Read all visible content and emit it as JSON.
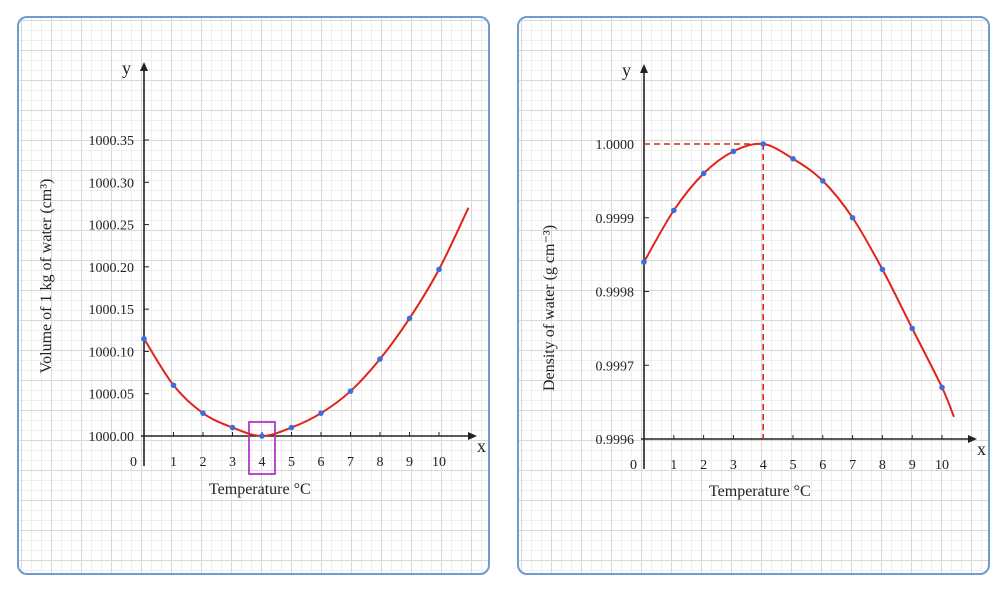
{
  "chart_data": [
    {
      "type": "line",
      "x": [
        0,
        1,
        2,
        3,
        4,
        5,
        6,
        7,
        8,
        9,
        10
      ],
      "series": [
        {
          "values": [
            1000.115,
            1000.06,
            1000.027,
            1000.01,
            1000.0,
            1000.01,
            1000.027,
            1000.053,
            1000.091,
            1000.139,
            1000.197
          ]
        }
      ],
      "curve_end": {
        "x": 11,
        "y": 1000.27
      },
      "xlabel": "Temperature °C",
      "ylabel": "Volume of 1 kg of water (cm³)",
      "x_axis_name": "x",
      "y_axis_name": "y",
      "origin_label": "0",
      "x_ticks": [
        "1",
        "2",
        "3",
        "4",
        "5",
        "6",
        "7",
        "8",
        "9",
        "10"
      ],
      "y_ticks": [
        "1000.00",
        "1000.05",
        "1000.10",
        "1000.15",
        "1000.20",
        "1000.25",
        "1000.30",
        "1000.35"
      ],
      "xlim": [
        0,
        11
      ],
      "ylim": [
        1000.0,
        1000.35
      ],
      "highlight_x": 4,
      "grid": true
    },
    {
      "type": "line",
      "x": [
        0,
        1,
        2,
        3,
        4,
        5,
        6,
        7,
        8,
        9,
        10
      ],
      "series": [
        {
          "values": [
            0.99984,
            0.99991,
            0.99996,
            0.99999,
            1.0,
            0.99998,
            0.99995,
            0.9999,
            0.99983,
            0.99975,
            0.99967
          ]
        }
      ],
      "curve_end": {
        "x": 10.4,
        "y": 0.99963
      },
      "xlabel": "Temperature °C",
      "ylabel": "Density of water (g cm⁻³)",
      "x_axis_name": "x",
      "y_axis_name": "y",
      "origin_label": "0",
      "x_ticks": [
        "1",
        "2",
        "3",
        "4",
        "5",
        "6",
        "7",
        "8",
        "9",
        "10"
      ],
      "y_ticks": [
        "0.9996",
        "0.9997",
        "0.9998",
        "0.9999",
        "1.0000"
      ],
      "xlim": [
        0,
        11
      ],
      "ylim": [
        0.9996,
        1.0
      ],
      "reference_point": {
        "x": 4,
        "y": 1.0
      },
      "grid": true
    }
  ],
  "colors": {
    "curve": "#e0241c",
    "points": "#3b6fe0",
    "highlight_box": "#b038c8",
    "reference_lines": "#e0241c",
    "axes": "#222222",
    "panel_border": "#6f9bd1"
  }
}
